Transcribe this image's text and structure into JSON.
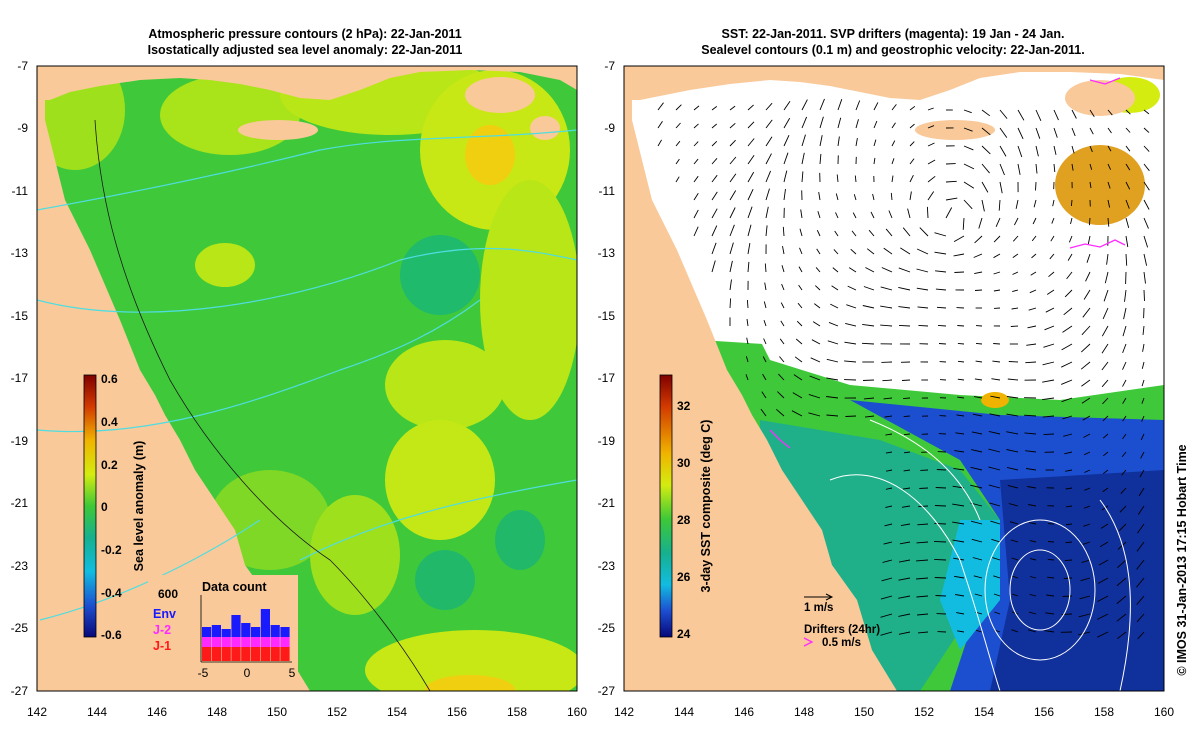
{
  "left_panel": {
    "title_line1": "Atmospheric pressure contours (2 hPa): 22-Jan-2011",
    "title_line2": "Isostatically adjusted sea level anomaly: 22-Jan-2011",
    "y_ticks": [
      "-7",
      "-9",
      "-11",
      "-13",
      "-15",
      "-17",
      "-19",
      "-21",
      "-23",
      "-25",
      "-27"
    ],
    "x_ticks": [
      "142",
      "144",
      "146",
      "148",
      "150",
      "152",
      "154",
      "156",
      "158",
      "160"
    ],
    "colorbar": {
      "label": "Sea level anomaly (m)",
      "ticks": [
        "0.6",
        "0.4",
        "0.2",
        "0",
        "-0.2",
        "-0.4",
        "-0.6"
      ]
    },
    "data_count": {
      "title": "Data count",
      "ymax_label": "600",
      "legend": [
        {
          "label": "Env",
          "color": "#1a1aff"
        },
        {
          "label": "J-2",
          "color": "#ff2aff"
        },
        {
          "label": "J-1",
          "color": "#ff1a1a"
        }
      ],
      "x_ticks": [
        "-5",
        "0",
        "5"
      ]
    }
  },
  "right_panel": {
    "title_line1": "SST: 22-Jan-2011. SVP drifters (magenta): 19 Jan - 24 Jan.",
    "title_line2": "Sealevel contours (0.1 m) and geostrophic velocity: 22-Jan-2011.",
    "y_ticks": [
      "-7",
      "-9",
      "-11",
      "-13",
      "-15",
      "-17",
      "-19",
      "-21",
      "-23",
      "-25",
      "-27"
    ],
    "x_ticks": [
      "142",
      "144",
      "146",
      "148",
      "150",
      "152",
      "154",
      "156",
      "158",
      "160"
    ],
    "colorbar": {
      "label": "3-day SST composite (deg C)",
      "ticks": [
        "32",
        "30",
        "28",
        "26",
        "24"
      ]
    },
    "velocity_scale": "1 m/s",
    "drifters_label": "Drifters (24hr)",
    "drifters_scale": "0.5 m/s"
  },
  "credit": "© IMOS 31-Jan-2013 17:15 Hobart Time",
  "colors": {
    "land": "#f9c99a",
    "sea_green": "#3fc93a",
    "sea_lime": "#b8e617",
    "sst_blue": "#1238a8",
    "magenta": "#ff2aff",
    "cyan": "#4fdde0"
  }
}
